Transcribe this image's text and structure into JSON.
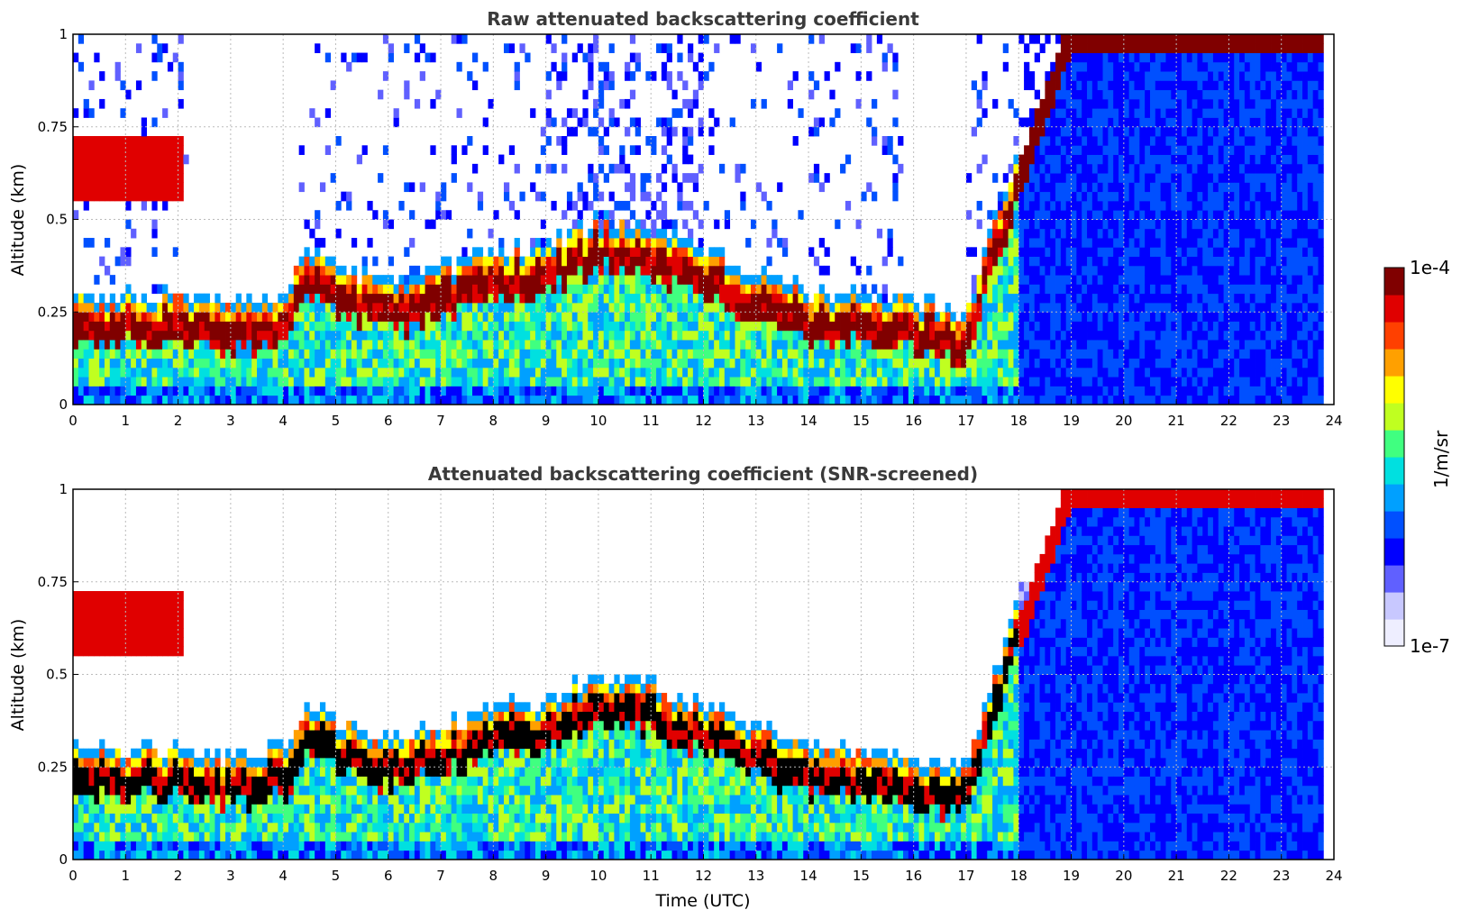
{
  "chart_data": [
    {
      "type": "heatmap",
      "title": "Raw attenuated backscattering coefficient",
      "xlabel": "",
      "ylabel": "Altitude (km)",
      "xlim": [
        0,
        24
      ],
      "ylim": [
        0,
        1
      ],
      "xticks": [
        "0",
        "1",
        "2",
        "3",
        "4",
        "5",
        "6",
        "7",
        "8",
        "9",
        "10",
        "11",
        "12",
        "13",
        "14",
        "15",
        "16",
        "17",
        "18",
        "19",
        "20",
        "21",
        "22",
        "23",
        "24"
      ],
      "yticks": [
        "0",
        "0.25",
        "0.5",
        "0.75",
        "1"
      ],
      "grid": true,
      "layer_height_km": [
        [
          0,
          0.2
        ],
        [
          2,
          0.2
        ],
        [
          3,
          0.18
        ],
        [
          4,
          0.2
        ],
        [
          4.5,
          0.32
        ],
        [
          5,
          0.28
        ],
        [
          6,
          0.23
        ],
        [
          7,
          0.26
        ],
        [
          8,
          0.32
        ],
        [
          9,
          0.33
        ],
        [
          10,
          0.4
        ],
        [
          11,
          0.38
        ],
        [
          12,
          0.32
        ],
        [
          13,
          0.26
        ],
        [
          14,
          0.2
        ],
        [
          15,
          0.2
        ],
        [
          16,
          0.18
        ],
        [
          17,
          0.15
        ],
        [
          18,
          0.6
        ],
        [
          19,
          1.0
        ]
      ],
      "upper_layer_km": [
        [
          0,
          0.6
        ],
        [
          1,
          0.58
        ],
        [
          2,
          0.6
        ]
      ],
      "noise_floor_start_utc": 18,
      "missing_after_utc": 23.8
    },
    {
      "type": "heatmap",
      "title": "Attenuated backscattering coefficient (SNR-screened)",
      "xlabel": "Time (UTC)",
      "ylabel": "Altitude (km)",
      "xlim": [
        0,
        24
      ],
      "ylim": [
        0,
        1
      ],
      "xticks": [
        "0",
        "1",
        "2",
        "3",
        "4",
        "5",
        "6",
        "7",
        "8",
        "9",
        "10",
        "11",
        "12",
        "13",
        "14",
        "15",
        "16",
        "17",
        "18",
        "19",
        "20",
        "21",
        "22",
        "23",
        "24"
      ],
      "yticks": [
        "0",
        "0.25",
        "0.5",
        "0.75",
        "1"
      ],
      "grid": true,
      "screened": true
    }
  ],
  "colorbar": {
    "label": "1/m/sr",
    "max_label": "1e-4",
    "min_label": "1e-7",
    "colors": [
      "#eeeeff",
      "#c8c8ff",
      "#6060ff",
      "#0000ff",
      "#0050ff",
      "#00a0ff",
      "#00e0e0",
      "#40ff80",
      "#c0ff20",
      "#ffff00",
      "#ffa000",
      "#ff4000",
      "#e00000",
      "#800000"
    ]
  }
}
